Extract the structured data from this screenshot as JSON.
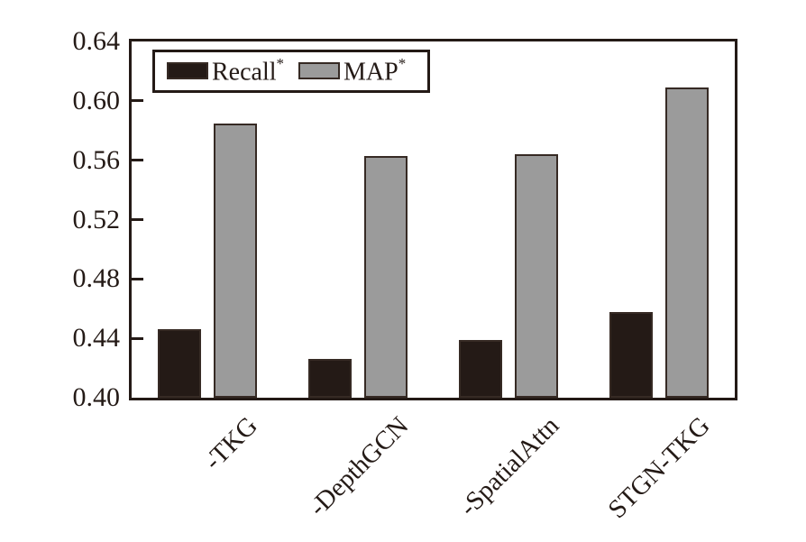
{
  "chart_data": {
    "type": "bar",
    "categories": [
      "-TKG",
      "-DepthGCN",
      "-SpatialAttn",
      "STGN-TKG"
    ],
    "series": [
      {
        "name": "Recall*",
        "fill": "#241a16",
        "values": [
          0.446,
          0.426,
          0.439,
          0.458
        ]
      },
      {
        "name": "MAP*",
        "fill": "#9b9b9b",
        "values": [
          0.585,
          0.563,
          0.564,
          0.609
        ]
      }
    ],
    "title": "",
    "xlabel": "",
    "ylabel": "",
    "ylim": [
      0.4,
      0.64
    ],
    "yticks": [
      "0.40",
      "0.44",
      "0.48",
      "0.52",
      "0.56",
      "0.60",
      "0.64"
    ],
    "grid": false,
    "legend_position": "upper-left-inside",
    "bar_edge_color": "#362a24",
    "axis_color": "#241a16",
    "text_color": "#241a16",
    "background_color": "#ffffff"
  }
}
